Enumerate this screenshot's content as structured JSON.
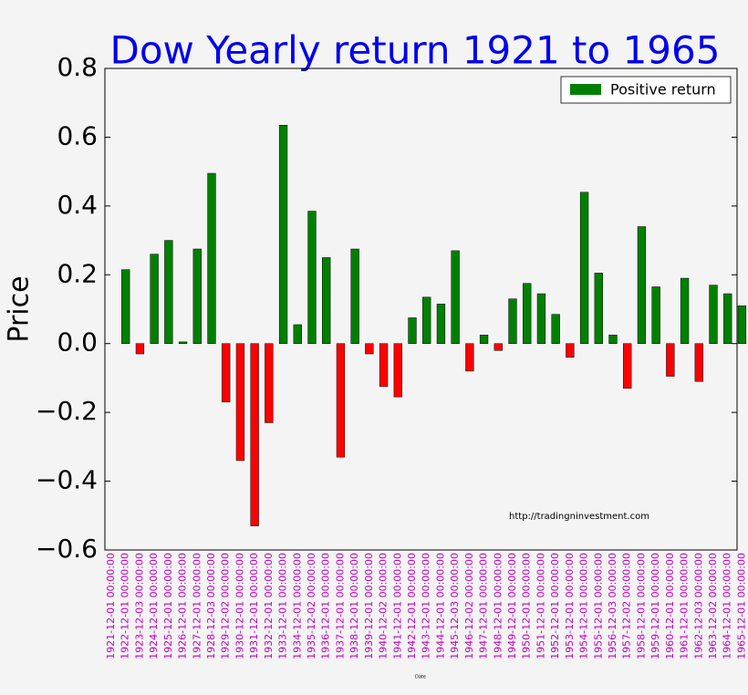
{
  "chart_data": {
    "type": "bar",
    "title": "Dow Yearly return 1921 to 1965",
    "x_label": "Date",
    "y_label": "Price",
    "annotation": "http://tradingninvestment.com",
    "categories": [
      "1921-12-01 00:00:00",
      "1922-12-01 00:00:00",
      "1923-12-03 00:00:00",
      "1924-12-01 00:00:00",
      "1925-12-01 00:00:00",
      "1926-12-01 00:00:00",
      "1927-12-01 00:00:00",
      "1928-12-03 00:00:00",
      "1929-12-02 00:00:00",
      "1930-12-01 00:00:00",
      "1931-12-01 00:00:00",
      "1932-12-01 00:00:00",
      "1933-12-01 00:00:00",
      "1934-12-01 00:00:00",
      "1935-12-02 00:00:00",
      "1936-12-01 00:00:00",
      "1937-12-01 00:00:00",
      "1938-12-01 00:00:00",
      "1939-12-01 00:00:00",
      "1940-12-02 00:00:00",
      "1941-12-01 00:00:00",
      "1942-12-01 00:00:00",
      "1943-12-01 00:00:00",
      "1944-12-01 00:00:00",
      "1945-12-03 00:00:00",
      "1946-12-02 00:00:00",
      "1947-12-01 00:00:00",
      "1948-12-01 00:00:00",
      "1949-12-01 00:00:00",
      "1950-12-01 00:00:00",
      "1951-12-01 00:00:00",
      "1952-12-01 00:00:00",
      "1953-12-01 00:00:00",
      "1954-12-01 00:00:00",
      "1955-12-01 00:00:00",
      "1956-12-03 00:00:00",
      "1957-12-02 00:00:00",
      "1958-12-01 00:00:00",
      "1959-12-01 00:00:00",
      "1960-12-01 00:00:00",
      "1961-12-01 00:00:00",
      "1962-12-03 00:00:00",
      "1963-12-02 00:00:00",
      "1964-12-01 00:00:00",
      "1965-12-01 00:00:00"
    ],
    "series": [
      {
        "name": "Positive return",
        "color": "#008000",
        "negative_color": "#ff0000",
        "values": [
          null,
          0.215,
          -0.03,
          0.26,
          0.3,
          0.005,
          0.275,
          0.495,
          -0.17,
          -0.34,
          -0.53,
          -0.23,
          0.635,
          0.055,
          0.385,
          0.25,
          -0.33,
          0.275,
          -0.03,
          -0.125,
          -0.155,
          0.075,
          0.135,
          0.115,
          0.27,
          -0.08,
          0.025,
          -0.02,
          0.13,
          0.175,
          0.145,
          0.085,
          -0.04,
          0.44,
          0.205,
          0.025,
          -0.13,
          0.34,
          0.165,
          -0.095,
          0.19,
          -0.11,
          0.17,
          0.145,
          0.11
        ]
      }
    ],
    "ylim": [
      -0.6,
      0.8
    ],
    "yticks": [
      0.8,
      0.6,
      0.4,
      0.2,
      {
        "value": 0,
        "label": "0.0"
      },
      {
        "value": -0.2,
        "label": "−0.2"
      },
      {
        "value": -0.4,
        "label": "−0.4"
      },
      {
        "value": -0.6,
        "label": "−0.6"
      }
    ],
    "legend": "upper right",
    "title_color": "#0000ee",
    "tick_label_color": "#bf00bf"
  }
}
